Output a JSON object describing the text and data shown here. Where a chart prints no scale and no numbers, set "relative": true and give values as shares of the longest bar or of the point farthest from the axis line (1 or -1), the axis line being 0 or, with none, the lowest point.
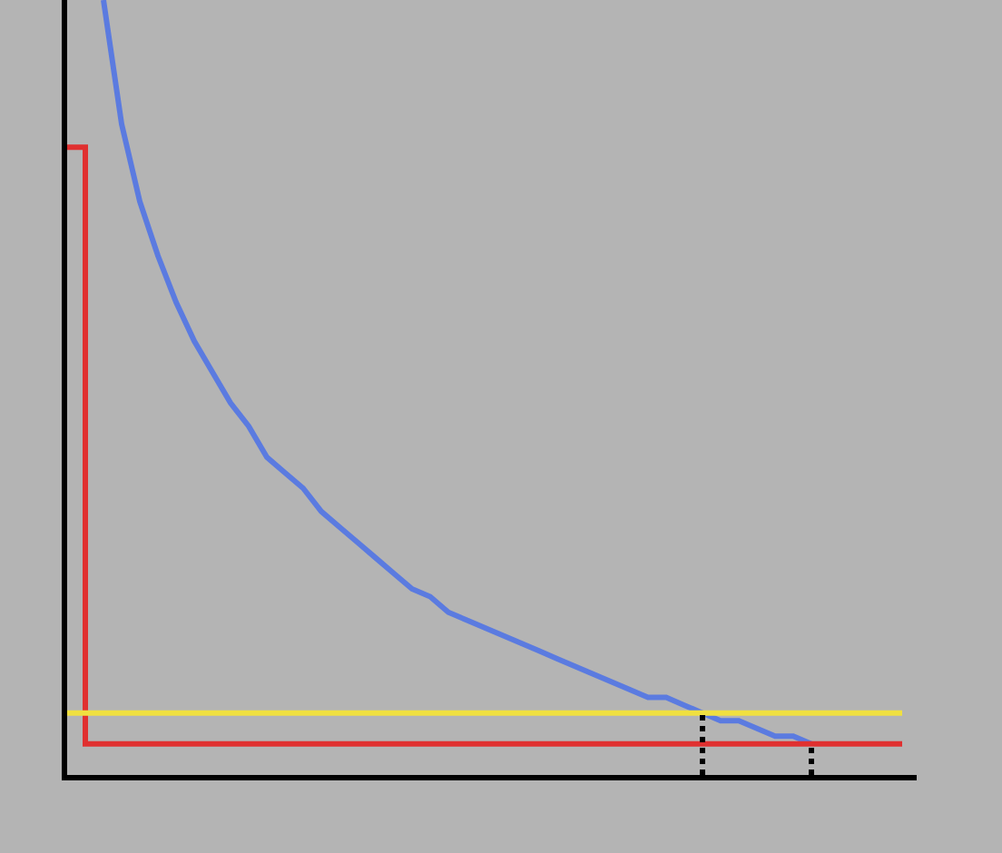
{
  "chart_data": {
    "type": "line",
    "relative": true,
    "grid": false,
    "legend": false,
    "marker": "none",
    "categories": [
      null,
      null,
      null,
      null,
      null,
      null,
      null,
      null,
      null,
      null,
      null,
      null,
      null,
      null,
      null,
      null,
      null,
      null,
      null,
      null,
      null,
      null,
      null,
      null,
      null,
      null,
      null,
      null,
      null,
      null,
      null,
      null,
      null,
      null,
      null,
      null,
      null,
      null,
      null,
      null,
      null,
      null,
      null,
      null,
      null,
      null,
      null
    ],
    "series": [
      {
        "color": "#5b7be0",
        "values": [
          null,
          null,
          1.0,
          0.84,
          0.74,
          0.67,
          0.61,
          0.56,
          0.52,
          0.48,
          0.45,
          0.41,
          0.39,
          0.37,
          0.34,
          0.32,
          0.3,
          0.28,
          0.26,
          0.24,
          0.23,
          0.21,
          0.2,
          0.19,
          0.18,
          0.17,
          0.16,
          0.15,
          0.14,
          0.13,
          0.12,
          0.11,
          0.1,
          0.1,
          0.09,
          0.08,
          0.07,
          0.07,
          0.06,
          0.05,
          0.05,
          0.04,
          null,
          null,
          null,
          null,
          null
        ]
      },
      {
        "type": "step",
        "color": "#e03030",
        "values": [
          0.81,
          0.04,
          0.04,
          0.04,
          0.04,
          0.04,
          0.04,
          0.04,
          0.04,
          0.04,
          0.04,
          0.04,
          0.04,
          0.04,
          0.04,
          0.04,
          0.04,
          0.04,
          0.04,
          0.04,
          0.04,
          0.04,
          0.04,
          0.04,
          0.04,
          0.04,
          0.04,
          0.04,
          0.04,
          0.04,
          0.04,
          0.04,
          0.04,
          0.04,
          0.04,
          0.04,
          0.04,
          0.04,
          0.04,
          0.04,
          0.04,
          0.04,
          0.04,
          0.04,
          0.04,
          0.04,
          0.04
        ]
      },
      {
        "color": "#f0e040",
        "values": [
          0.08,
          0.08,
          0.08,
          0.08,
          0.08,
          0.08,
          0.08,
          0.08,
          0.08,
          0.08,
          0.08,
          0.08,
          0.08,
          0.08,
          0.08,
          0.08,
          0.08,
          0.08,
          0.08,
          0.08,
          0.08,
          0.08,
          0.08,
          0.08,
          0.08,
          0.08,
          0.08,
          0.08,
          0.08,
          0.08,
          0.08,
          0.08,
          0.08,
          0.08,
          0.08,
          0.08,
          0.08,
          0.08,
          0.08,
          0.08,
          0.08,
          0.08,
          0.08,
          0.08,
          0.08,
          0.08,
          0.08
        ]
      }
    ]
  }
}
